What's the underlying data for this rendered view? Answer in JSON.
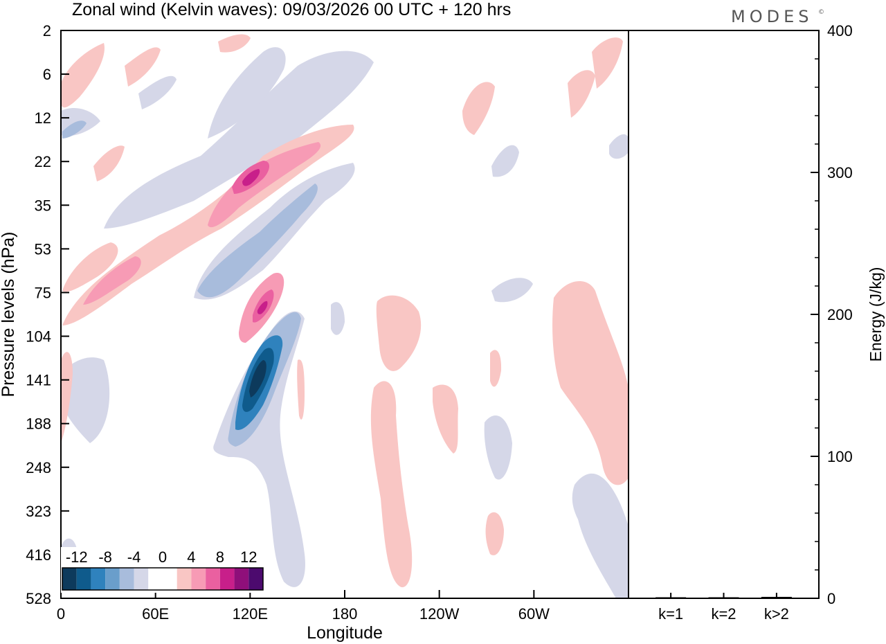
{
  "figure": {
    "title": "Zonal wind (Kelvin waves):  09/03/2026  00 UTC  + 120 hrs",
    "logo": "MODES",
    "logo_mark": "©"
  },
  "chart_data": [
    {
      "type": "heatmap",
      "name": "hovmoller-contour",
      "xlabel": "Longitude",
      "ylabel": "Pressure levels (hPa)",
      "x_ticks": [
        "0",
        "60E",
        "120E",
        "180",
        "120W",
        "60W"
      ],
      "x_tick_values": [
        0,
        60,
        120,
        180,
        240,
        300
      ],
      "xlim": [
        0,
        360
      ],
      "y_ticks": [
        "2",
        "6",
        "12",
        "22",
        "35",
        "53",
        "75",
        "104",
        "141",
        "188",
        "248",
        "323",
        "416",
        "528"
      ],
      "y_scale": "categorical (log-like pressure levels), top to bottom",
      "colorbar": {
        "labels": [
          "-12",
          "-8",
          "-4",
          "0",
          "4",
          "8",
          "12"
        ],
        "colors": [
          "#0d3a5c",
          "#0f5b8c",
          "#2f82bd",
          "#6a9ecb",
          "#a8bcdc",
          "#d5d7e8",
          "#ffffff",
          "#ffffff",
          "#f9c6c4",
          "#f79bb5",
          "#ea60a0",
          "#c81f8a",
          "#8f0f7a",
          "#4c0a6e"
        ]
      },
      "features": [
        {
          "sign": "positive",
          "peak": 13,
          "lon": 112,
          "level": "22-35"
        },
        {
          "sign": "positive",
          "peak": 12,
          "lon": 116,
          "level": "75-104"
        },
        {
          "sign": "negative",
          "peak": -14,
          "lon": 118,
          "level": "104-188"
        },
        {
          "sign": "negative",
          "peak": -8,
          "lon": 103,
          "level": "53-75"
        },
        {
          "sign": "positive",
          "peak": 8,
          "lon": 25,
          "level": "53-104"
        }
      ]
    },
    {
      "type": "bar",
      "name": "kelvin-energy",
      "ylabel": "Energy (J/kg)",
      "categories": [
        "k=1",
        "k=2",
        "k>2"
      ],
      "values": [
        0,
        0,
        1
      ],
      "ylim": [
        0,
        400
      ],
      "y_ticks": [
        "0",
        "100",
        "200",
        "300",
        "400"
      ],
      "y_tick_values": [
        0,
        100,
        200,
        300,
        400
      ]
    }
  ]
}
